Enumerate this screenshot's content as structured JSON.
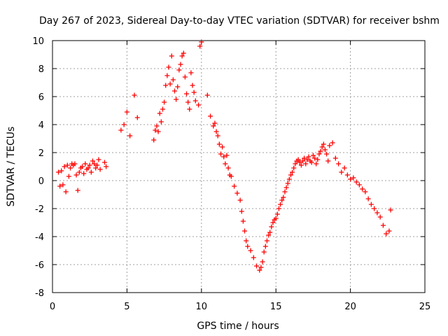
{
  "chart_data": {
    "type": "scatter",
    "title": "Day 267 of 2023, Sidereal Day-to-day VTEC variation (SDTVAR) for receiver bshm",
    "xlabel": "GPS time / hours",
    "ylabel": "SDTVAR / TECUs",
    "xlim": [
      0,
      25
    ],
    "ylim": [
      -8,
      10
    ],
    "xticks": [
      0,
      5,
      10,
      15,
      20,
      25
    ],
    "yticks": [
      -8,
      -6,
      -4,
      -2,
      0,
      2,
      4,
      6,
      8,
      10
    ],
    "grid": true,
    "marker": "+",
    "color": "#ff0000",
    "series": [
      {
        "name": "SDTVAR",
        "x": [
          0.4,
          0.5,
          0.6,
          0.7,
          0.8,
          0.9,
          1.0,
          1.1,
          1.2,
          1.3,
          1.4,
          1.5,
          1.6,
          1.7,
          1.8,
          1.9,
          2.0,
          2.1,
          2.2,
          2.3,
          2.4,
          2.5,
          2.6,
          2.7,
          2.8,
          2.9,
          3.0,
          3.1,
          3.2,
          3.5,
          3.6,
          4.6,
          4.8,
          5.0,
          5.2,
          5.5,
          5.7,
          6.8,
          6.9,
          7.0,
          7.1,
          7.2,
          7.3,
          7.4,
          7.5,
          7.6,
          7.7,
          7.8,
          7.9,
          8.0,
          8.1,
          8.2,
          8.3,
          8.4,
          8.5,
          8.6,
          8.7,
          8.8,
          8.9,
          9.0,
          9.1,
          9.2,
          9.3,
          9.4,
          9.5,
          9.6,
          9.8,
          9.9,
          10.0,
          10.4,
          10.6,
          10.8,
          10.9,
          11.0,
          11.1,
          11.2,
          11.3,
          11.4,
          11.5,
          11.6,
          11.7,
          11.8,
          11.9,
          12.0,
          12.2,
          12.4,
          12.6,
          12.7,
          12.8,
          12.9,
          13.0,
          13.1,
          13.3,
          13.5,
          13.7,
          13.9,
          14.0,
          14.1,
          14.2,
          14.3,
          14.4,
          14.5,
          14.6,
          14.7,
          14.8,
          14.9,
          15.0,
          15.1,
          15.2,
          15.3,
          15.4,
          15.5,
          15.6,
          15.7,
          15.8,
          15.9,
          16.0,
          16.1,
          16.2,
          16.3,
          16.4,
          16.5,
          16.6,
          16.7,
          16.8,
          16.9,
          17.0,
          17.1,
          17.2,
          17.3,
          17.4,
          17.5,
          17.6,
          17.7,
          17.8,
          17.9,
          18.0,
          18.1,
          18.2,
          18.3,
          18.4,
          18.5,
          18.6,
          18.8,
          19.0,
          19.2,
          19.4,
          19.6,
          19.8,
          20.0,
          20.2,
          20.4,
          20.6,
          20.8,
          21.0,
          21.2,
          21.4,
          21.6,
          21.8,
          22.0,
          22.2,
          22.4,
          22.6,
          22.7
        ],
        "y": [
          0.6,
          -0.4,
          0.7,
          -0.3,
          1.0,
          -0.8,
          1.1,
          0.3,
          0.9,
          1.2,
          1.1,
          1.2,
          0.4,
          -0.7,
          0.6,
          0.9,
          1.0,
          0.5,
          1.2,
          0.8,
          0.9,
          1.1,
          0.6,
          1.4,
          1.2,
          0.9,
          1.1,
          1.5,
          0.8,
          1.3,
          1.0,
          3.6,
          4.0,
          4.9,
          3.2,
          6.1,
          4.5,
          2.9,
          3.6,
          3.9,
          3.5,
          4.8,
          4.2,
          5.1,
          5.6,
          6.8,
          7.5,
          8.1,
          6.9,
          8.9,
          7.2,
          6.4,
          5.8,
          6.7,
          7.9,
          8.3,
          8.9,
          9.1,
          7.4,
          6.2,
          5.6,
          5.1,
          7.7,
          6.8,
          6.3,
          5.7,
          5.4,
          9.6,
          9.9,
          6.1,
          4.6,
          3.9,
          4.1,
          3.5,
          3.2,
          2.6,
          1.9,
          2.4,
          1.7,
          1.2,
          1.8,
          0.9,
          0.4,
          0.3,
          -0.4,
          -0.9,
          -1.4,
          -2.2,
          -2.9,
          -3.6,
          -4.3,
          -4.7,
          -5.0,
          -5.5,
          -6.1,
          -6.4,
          -6.2,
          -5.8,
          -5.1,
          -4.7,
          -4.3,
          -3.9,
          -3.7,
          -3.3,
          -3.0,
          -2.8,
          -2.7,
          -2.4,
          -2.0,
          -1.7,
          -1.4,
          -1.2,
          -0.8,
          -0.5,
          -0.2,
          0.1,
          0.4,
          0.6,
          0.9,
          1.2,
          1.4,
          1.5,
          1.3,
          1.1,
          1.4,
          1.6,
          1.2,
          1.5,
          1.7,
          1.4,
          1.3,
          1.8,
          1.6,
          1.2,
          1.5,
          1.9,
          2.1,
          2.4,
          2.6,
          2.2,
          1.9,
          1.4,
          2.5,
          2.7,
          1.6,
          1.2,
          0.6,
          0.9,
          0.4,
          0.1,
          0.2,
          -0.1,
          -0.3,
          -0.6,
          -0.8,
          -1.3,
          -1.7,
          -2.0,
          -2.3,
          -2.6,
          -3.2,
          -3.8,
          -3.6,
          -2.1
        ]
      }
    ]
  }
}
